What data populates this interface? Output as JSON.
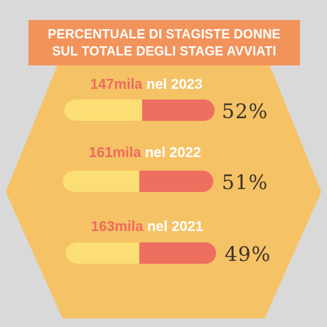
{
  "title": {
    "line1": "PERCENTUALE DI STAGISTE DONNE",
    "line2": "SUL TOTALE DEGLI STAGE AVVIATI"
  },
  "colors": {
    "background": "#d9d9d9",
    "hexagon": "#f5c265",
    "title_box": "#f2935c",
    "bar_track": "#ee6e60",
    "bar_fill": "#fbdf74",
    "count_text": "#ee6a5e",
    "year_text": "#ffffff"
  },
  "chart_data": {
    "type": "bar",
    "orientation": "horizontal",
    "title": "PERCENTUALE DI STAGISTE DONNE SUL TOTALE DEGLI STAGE AVVIATI",
    "xlim": [
      0,
      100
    ],
    "rows": [
      {
        "count": "147mila",
        "year": "nel 2023",
        "value": 52,
        "label": "52%"
      },
      {
        "count": "161mila",
        "year": "nel 2022",
        "value": 51,
        "label": "51%"
      },
      {
        "count": "163mila",
        "year": "nel 2021",
        "value": 49,
        "label": "49%"
      }
    ]
  }
}
